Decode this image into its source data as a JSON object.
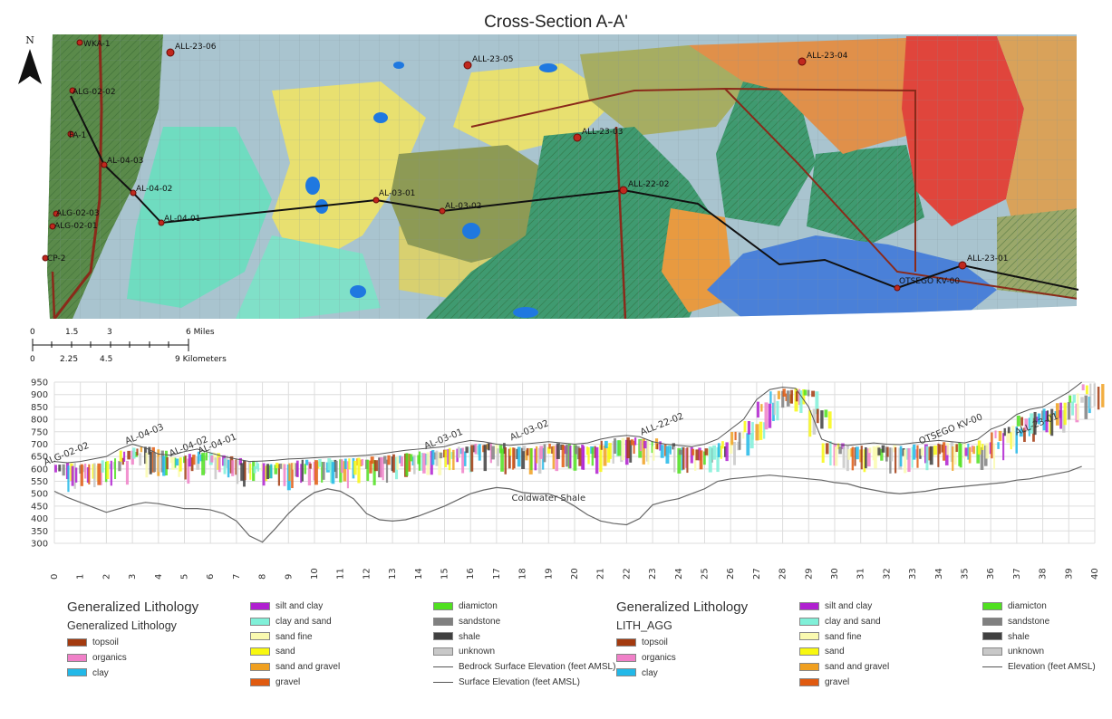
{
  "map": {
    "title": "Cross-Section A-A'",
    "north_label": "N",
    "wells": [
      "WKA-1",
      "ALL-23-06",
      "ALL-23-05",
      "ALL-23-04",
      "ALG-02-02",
      "FA-1",
      "AL-04-03",
      "AL-04-02",
      "ALL-23-03",
      "AL-03-01",
      "AL-03-02",
      "ALL-22-02",
      "ALG-02-03",
      "ALG-02-01",
      "AL-04-01",
      "CP-2",
      "OTSEGO KV-00",
      "ALL-23-01"
    ],
    "scale_miles": [
      "0",
      "1.5",
      "3",
      "6 Miles"
    ],
    "scale_km": [
      "0",
      "2.25",
      "4.5",
      "9 Kilometers"
    ]
  },
  "section": {
    "y_ticks": [
      "950",
      "900",
      "850",
      "800",
      "750",
      "700",
      "650",
      "600",
      "550",
      "500",
      "450",
      "400",
      "350",
      "300"
    ],
    "x_ticks": [
      "0",
      "1",
      "2",
      "3",
      "4",
      "5",
      "6",
      "7",
      "8",
      "9",
      "10",
      "11",
      "12",
      "13",
      "14",
      "15",
      "16",
      "17",
      "18",
      "19",
      "20",
      "21",
      "22",
      "23",
      "24",
      "25",
      "26",
      "27",
      "28",
      "29",
      "30",
      "31",
      "32",
      "33",
      "34",
      "35",
      "36",
      "37",
      "38",
      "39",
      "40"
    ],
    "well_labels": [
      "ALG-02-02",
      "AL-04-03",
      "AL-04-02",
      "AL-04-01",
      "AL-03-01",
      "AL-03-02",
      "ALL-22-02",
      "OTSEGO KV-00",
      "ALL-23-01"
    ],
    "shale_label": "Coldwater Shale"
  },
  "chart_data": {
    "type": "line",
    "x": [
      0,
      0.5,
      1,
      1.5,
      2,
      2.5,
      3,
      3.5,
      4,
      4.5,
      5,
      5.5,
      6,
      6.5,
      7,
      7.5,
      8,
      8.5,
      9,
      9.5,
      10,
      10.5,
      11,
      11.5,
      12,
      12.5,
      13,
      13.5,
      14,
      14.5,
      15,
      15.5,
      16,
      16.5,
      17,
      17.5,
      18,
      18.5,
      19,
      19.5,
      20,
      20.5,
      21,
      21.5,
      22,
      22.5,
      23,
      23.5,
      24,
      24.5,
      25,
      25.5,
      26,
      26.5,
      27,
      27.5,
      28,
      28.5,
      29,
      29.5,
      30,
      30.5,
      31,
      31.5,
      32,
      32.5,
      33,
      33.5,
      34,
      34.5,
      35,
      35.5,
      36,
      36.5,
      37,
      37.5,
      38,
      38.5,
      39,
      39.5
    ],
    "series": [
      {
        "name": "Surface Elevation (feet AMSL)",
        "values": [
          630,
          625,
          630,
          640,
          650,
          680,
          700,
          685,
          660,
          655,
          670,
          680,
          665,
          650,
          640,
          630,
          632,
          635,
          640,
          642,
          645,
          648,
          650,
          652,
          655,
          660,
          668,
          675,
          680,
          685,
          690,
          705,
          715,
          710,
          700,
          695,
          700,
          705,
          710,
          705,
          700,
          705,
          720,
          730,
          735,
          730,
          710,
          700,
          695,
          690,
          700,
          720,
          760,
          800,
          880,
          920,
          930,
          925,
          850,
          720,
          700,
          695,
          700,
          705,
          700,
          698,
          705,
          710,
          715,
          710,
          705,
          720,
          760,
          780,
          820,
          840,
          850,
          880,
          910,
          950
        ]
      },
      {
        "name": "Bedrock Surface Elevation (feet AMSL)",
        "values": [
          510,
          485,
          465,
          445,
          425,
          440,
          455,
          465,
          460,
          450,
          440,
          440,
          435,
          420,
          390,
          330,
          305,
          360,
          420,
          470,
          505,
          520,
          510,
          480,
          420,
          395,
          390,
          395,
          410,
          430,
          450,
          475,
          500,
          515,
          525,
          520,
          505,
          500,
          500,
          480,
          450,
          415,
          390,
          380,
          375,
          400,
          455,
          470,
          480,
          500,
          520,
          550,
          560,
          565,
          570,
          575,
          570,
          565,
          560,
          555,
          545,
          540,
          525,
          515,
          505,
          500,
          505,
          510,
          520,
          525,
          530,
          535,
          540,
          545,
          555,
          560,
          570,
          580,
          590,
          610
        ]
      }
    ],
    "ylim": [
      300,
      950
    ],
    "xlim": [
      0,
      40
    ]
  },
  "legend1": {
    "title": "Generalized Lithology",
    "subtitle": "Generalized Lithology",
    "items": [
      {
        "label": "topsoil",
        "color": "#a33a0f"
      },
      {
        "label": "organics",
        "color": "#f080c8"
      },
      {
        "label": "clay",
        "color": "#22b8e8"
      },
      {
        "label": "silt and clay",
        "color": "#b020d0"
      },
      {
        "label": "clay and sand",
        "color": "#80f0d8"
      },
      {
        "label": "sand fine",
        "color": "#fafab0"
      },
      {
        "label": "sand",
        "color": "#f8f810"
      },
      {
        "label": "sand and gravel",
        "color": "#f0a020"
      },
      {
        "label": "gravel",
        "color": "#e05a10"
      },
      {
        "label": "diamicton",
        "color": "#50e020"
      },
      {
        "label": "sandstone",
        "color": "#808080"
      },
      {
        "label": "shale",
        "color": "#404040"
      },
      {
        "label": "unknown",
        "color": "#c8c8c8"
      },
      {
        "label": "Bedrock Surface Elevation (feet AMSL)",
        "color": "#555555",
        "line": true
      },
      {
        "label": "Surface Elevation (feet AMSL)",
        "color": "#888888",
        "line": true
      }
    ]
  },
  "legend2": {
    "title": "Generalized Lithology",
    "subtitle": "LITH_AGG",
    "items": [
      {
        "label": "topsoil",
        "color": "#a33a0f"
      },
      {
        "label": "organics",
        "color": "#f080c8"
      },
      {
        "label": "clay",
        "color": "#22b8e8"
      },
      {
        "label": "silt and clay",
        "color": "#b020d0"
      },
      {
        "label": "clay and sand",
        "color": "#80f0d8"
      },
      {
        "label": "sand fine",
        "color": "#fafab0"
      },
      {
        "label": "sand",
        "color": "#f8f810"
      },
      {
        "label": "sand and gravel",
        "color": "#f0a020"
      },
      {
        "label": "gravel",
        "color": "#e05a10"
      },
      {
        "label": "diamicton",
        "color": "#50e020"
      },
      {
        "label": "sandstone",
        "color": "#808080"
      },
      {
        "label": "shale",
        "color": "#404040"
      },
      {
        "label": "unknown",
        "color": "#c8c8c8"
      },
      {
        "label": "Elevation (feet AMSL)",
        "color": "#aaaaaa",
        "line": true
      }
    ]
  }
}
